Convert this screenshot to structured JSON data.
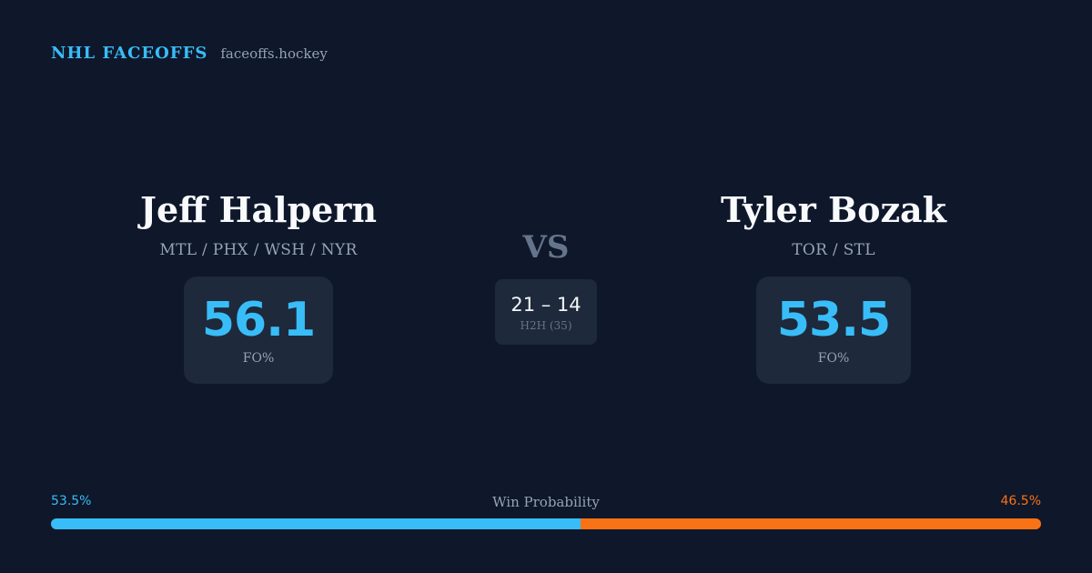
{
  "brand": {
    "name": "NHL FACEOFFS",
    "site": "faceoffs.hockey"
  },
  "player_a": {
    "name": "Jeff Halpern",
    "teams": "MTL / PHX / WSH / NYR",
    "fo_pct": "56.1",
    "fo_label": "FO%"
  },
  "player_b": {
    "name": "Tyler Bozak",
    "teams": "TOR / STL",
    "fo_pct": "53.5",
    "fo_label": "FO%"
  },
  "matchup": {
    "vs": "VS",
    "h2h_score": "21 – 14",
    "h2h_label": "H2H (35)"
  },
  "win_probability": {
    "title": "Win Probability",
    "player_a_label": "53.5%",
    "player_b_label": "46.5%",
    "player_a_fraction": 0.535,
    "player_b_fraction": 0.465,
    "player_a_color": "#38bdf8",
    "player_b_color": "#f97316"
  }
}
